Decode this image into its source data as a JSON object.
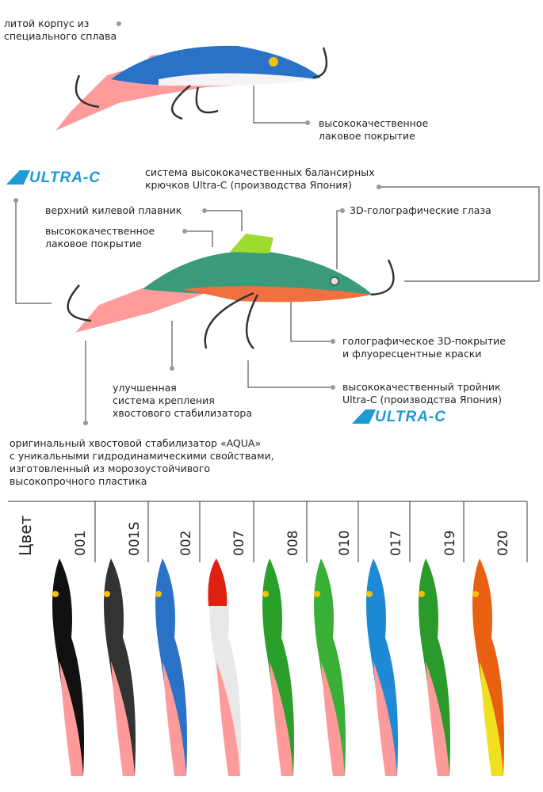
{
  "callouts": {
    "cast_body": "литой корпус из\nспециального сплава",
    "lacquer_top": "высококачественное\nлаковое покрытие",
    "hooks": "система высококачественных балансирных\nкрючков Ultra-C (производства Япония)",
    "dorsal_fin": "верхний килевой плавник",
    "lacquer": "высококачественное\nлаковое покрытие",
    "eyes": "3D-голографические глаза",
    "coating": "голографическое 3D-покрытие\nи флуоресцентные краски",
    "treble": "высококачественный тройник\nUltra-C (производства Япония)",
    "tail_mount": "улучшенная\nсистема крепления\nхвостового стабилизатора",
    "tail": "оригинальный хвостовой стабилизатор «AQUA»\nс уникальными гидродинамическими свойствами,\nизготовленный из морозоустойчивого\nвысокопрочного пластика"
  },
  "logo_text": "ULTRA-C",
  "colors_table": {
    "header": "Цвет",
    "codes": [
      "001",
      "001S",
      "002",
      "007",
      "008",
      "010",
      "017",
      "019",
      "020"
    ]
  },
  "accent": "#1e9ad6"
}
